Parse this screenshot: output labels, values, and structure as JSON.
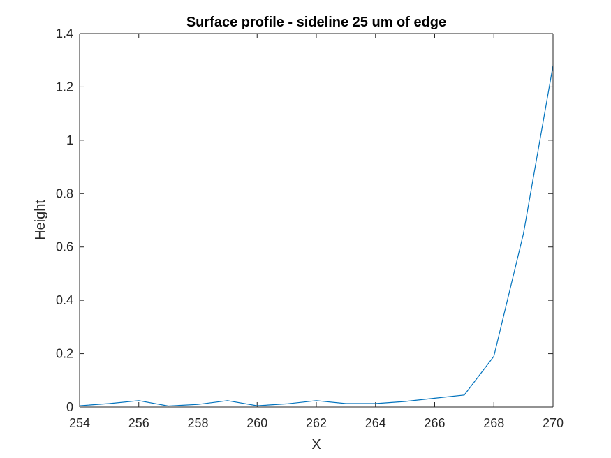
{
  "chart_data": {
    "type": "line",
    "title": "Surface profile - sideline 25 um of edge",
    "xlabel": "X",
    "ylabel": "Height",
    "xlim": [
      254,
      270
    ],
    "ylim": [
      0,
      1.4
    ],
    "xticks": [
      254,
      256,
      258,
      260,
      262,
      264,
      266,
      268,
      270
    ],
    "yticks": [
      0,
      0.2,
      0.4,
      0.6,
      0.8,
      1,
      1.2,
      1.4
    ],
    "xtick_labels": [
      "254",
      "256",
      "258",
      "260",
      "262",
      "264",
      "266",
      "268",
      "270"
    ],
    "ytick_labels": [
      "0",
      "0.2",
      "0.4",
      "0.6",
      "0.8",
      "1",
      "1.2",
      "1.4"
    ],
    "grid": false,
    "legend": "none",
    "series": [
      {
        "color": "#0072BD",
        "x": [
          254,
          255,
          256,
          257,
          258,
          259,
          260,
          261,
          262,
          263,
          264,
          265,
          266,
          267,
          268,
          269,
          270
        ],
        "y": [
          0.005,
          0.013,
          0.024,
          0.004,
          0.01,
          0.024,
          0.005,
          0.012,
          0.024,
          0.013,
          0.013,
          0.021,
          0.033,
          0.045,
          0.19,
          0.65,
          1.28
        ]
      }
    ]
  }
}
